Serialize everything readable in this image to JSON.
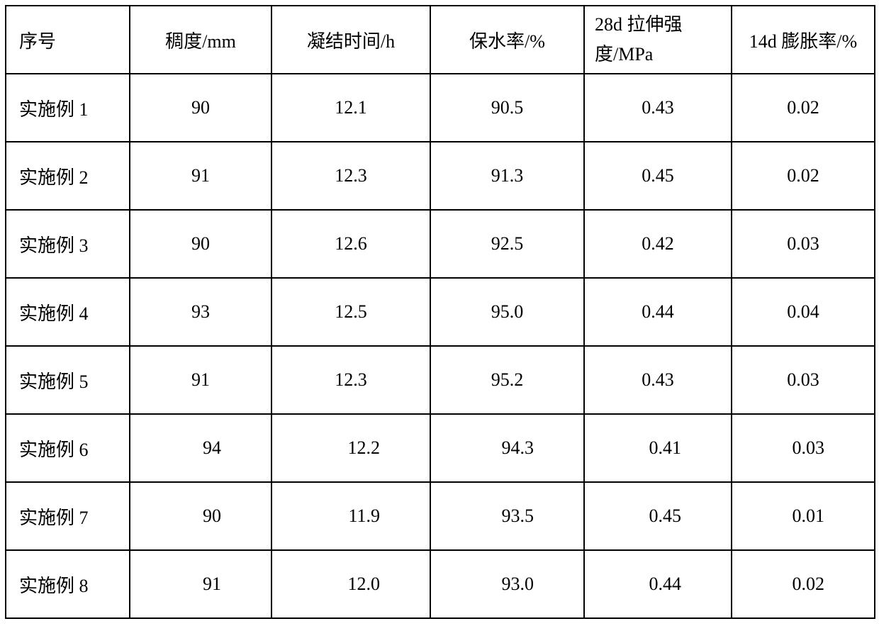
{
  "table": {
    "columns": [
      {
        "label": "序号",
        "align": "left"
      },
      {
        "label": "稠度/mm",
        "align": "center"
      },
      {
        "label": "凝结时间/h",
        "align": "center"
      },
      {
        "label": "保水率/%",
        "align": "center"
      },
      {
        "label": "28d 拉伸强度/MPa",
        "align": "left",
        "multiline": true
      },
      {
        "label": "14d 膨胀率/%",
        "align": "center"
      }
    ],
    "rows": [
      {
        "cells": [
          "实施例 1",
          "90",
          "12.1",
          "90.5",
          "0.43",
          "0.02"
        ],
        "right_aligned": false
      },
      {
        "cells": [
          "实施例 2",
          "91",
          "12.3",
          "91.3",
          "0.45",
          "0.02"
        ],
        "right_aligned": false
      },
      {
        "cells": [
          "实施例 3",
          "90",
          "12.6",
          "92.5",
          "0.42",
          "0.03"
        ],
        "right_aligned": false
      },
      {
        "cells": [
          "实施例 4",
          "93",
          "12.5",
          "95.0",
          "0.44",
          "0.04"
        ],
        "right_aligned": false
      },
      {
        "cells": [
          "实施例 5",
          "91",
          "12.3",
          "95.2",
          "0.43",
          "0.03"
        ],
        "right_aligned": false
      },
      {
        "cells": [
          "实施例 6",
          "94",
          "12.2",
          "94.3",
          "0.41",
          "0.03"
        ],
        "right_aligned": true
      },
      {
        "cells": [
          "实施例 7",
          "90",
          "11.9",
          "93.5",
          "0.45",
          "0.01"
        ],
        "right_aligned": true
      },
      {
        "cells": [
          "实施例 8",
          "91",
          "12.0",
          "93.0",
          "0.44",
          "0.02"
        ],
        "right_aligned": true
      }
    ],
    "border_color": "#000000",
    "background_color": "#ffffff",
    "text_color": "#000000",
    "font_size": 26
  }
}
